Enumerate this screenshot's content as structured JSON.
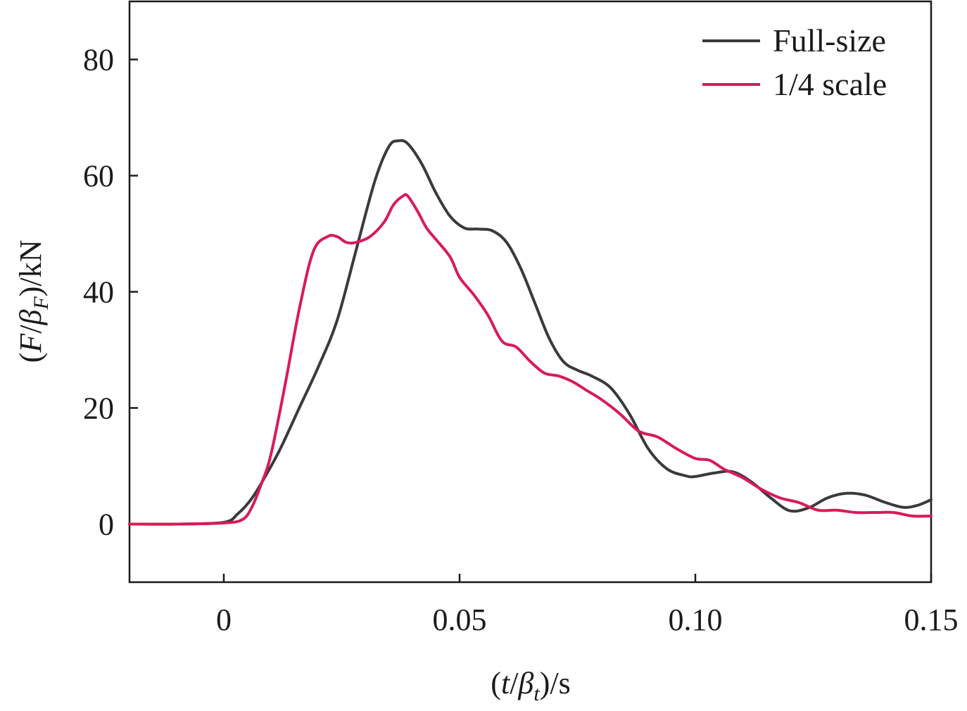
{
  "chart_data": {
    "type": "line",
    "title": "",
    "xlim": [
      -0.02,
      0.15
    ],
    "ylim": [
      -10,
      90
    ],
    "x_ticks": [
      {
        "value": 0,
        "label": "0"
      },
      {
        "value": 0.05,
        "label": "0.05"
      },
      {
        "value": 0.1,
        "label": "0.10"
      },
      {
        "value": 0.15,
        "label": "0.15"
      }
    ],
    "y_ticks": [
      {
        "value": 0,
        "label": "0"
      },
      {
        "value": 20,
        "label": "20"
      },
      {
        "value": 40,
        "label": "40"
      },
      {
        "value": 60,
        "label": "60"
      },
      {
        "value": 80,
        "label": "80"
      }
    ],
    "xlabel": {
      "open": "(",
      "t": "t",
      "slash": "/",
      "beta": "β",
      "sub": "t",
      "close": ")/s"
    },
    "ylabel": {
      "open": "(",
      "f": "F",
      "slash": "/",
      "beta": "β",
      "sub": "F",
      "close": ")/kN"
    },
    "grid": false,
    "legend_position": "top-right",
    "series": [
      {
        "name": "Full-size",
        "color": "#3a3a3a",
        "x": [
          -0.02,
          -0.01,
          0,
          0.003,
          0.006,
          0.009,
          0.012,
          0.016,
          0.02,
          0.024,
          0.028,
          0.032,
          0.035,
          0.037,
          0.039,
          0.042,
          0.045,
          0.048,
          0.051,
          0.054,
          0.057,
          0.06,
          0.063,
          0.066,
          0.069,
          0.072,
          0.075,
          0.078,
          0.082,
          0.086,
          0.09,
          0.094,
          0.098,
          0.1,
          0.104,
          0.108,
          0.112,
          0.116,
          0.12,
          0.124,
          0.128,
          0.132,
          0.136,
          0.14,
          0.144,
          0.147,
          0.15
        ],
        "y": [
          0,
          0,
          0.3,
          1.8,
          4.5,
          8.5,
          13,
          20,
          27,
          35,
          47,
          59,
          65,
          66,
          65.5,
          62,
          57,
          53,
          51,
          50.8,
          50.5,
          48.5,
          44,
          38,
          32,
          28,
          26.5,
          25.5,
          23.5,
          19,
          13,
          9.5,
          8.3,
          8.2,
          8.8,
          9,
          7.2,
          4.5,
          2.3,
          2.8,
          4.5,
          5.3,
          5,
          3.8,
          2.9,
          3.2,
          4.2
        ]
      },
      {
        "name": "1/4 scale",
        "color": "#d81b56",
        "x": [
          -0.02,
          -0.01,
          0,
          0.004,
          0.006,
          0.008,
          0.01,
          0.013,
          0.016,
          0.019,
          0.022,
          0.024,
          0.026,
          0.028,
          0.031,
          0.034,
          0.036,
          0.038,
          0.039,
          0.041,
          0.043,
          0.045,
          0.048,
          0.05,
          0.053,
          0.056,
          0.059,
          0.062,
          0.065,
          0.068,
          0.071,
          0.074,
          0.077,
          0.08,
          0.084,
          0.088,
          0.092,
          0.096,
          0.1,
          0.103,
          0.106,
          0.11,
          0.114,
          0.118,
          0.122,
          0.126,
          0.13,
          0.134,
          0.138,
          0.142,
          0.146,
          0.15
        ],
        "y": [
          0,
          0,
          0.2,
          0.8,
          3,
          7,
          12,
          24,
          37,
          47,
          49.5,
          49.5,
          48.5,
          48.5,
          49.5,
          52,
          55,
          56.5,
          56.5,
          54,
          51,
          49,
          46,
          42.5,
          39.5,
          36,
          31.5,
          30.5,
          28,
          26,
          25.5,
          24.5,
          23,
          21.5,
          19,
          16,
          15,
          13,
          11.3,
          11,
          9.5,
          8,
          6,
          4.5,
          3.7,
          2.4,
          2.4,
          2,
          2,
          2,
          1.4,
          1.4
        ]
      }
    ]
  }
}
